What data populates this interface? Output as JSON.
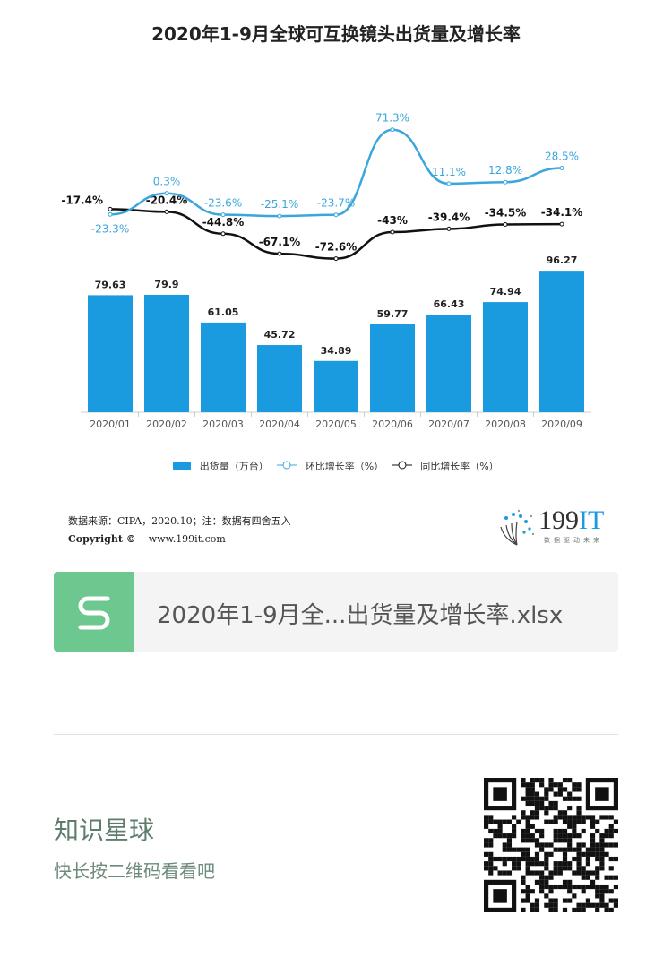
{
  "title": "2020年1-9月全球可互换镜头出货量及增长率",
  "chart_data": {
    "type": "bar+line",
    "title": "2020年1-9月全球可互换镜头出货量及增长率",
    "categories": [
      "2020/01",
      "2020/02",
      "2020/03",
      "2020/04",
      "2020/05",
      "2020/06",
      "2020/07",
      "2020/08",
      "2020/09"
    ],
    "series": [
      {
        "name": "出货量（万台）",
        "type": "bar",
        "color": "#1a9be0",
        "values": [
          79.63,
          79.9,
          61.05,
          45.72,
          34.89,
          59.77,
          66.43,
          74.94,
          96.27
        ],
        "labels": [
          "79.63",
          "79.9",
          "61.05",
          "45.72",
          "34.89",
          "59.77",
          "66.43",
          "74.94",
          "96.27"
        ]
      },
      {
        "name": "环比增长率（%）",
        "type": "line",
        "color": "#3aa6dc",
        "values": [
          -23.3,
          0.3,
          -23.6,
          -25.1,
          -23.7,
          71.3,
          11.1,
          12.8,
          28.5
        ],
        "labels": [
          "-23.3%",
          "0.3%",
          "-23.6%",
          "-25.1%",
          "-23.7%",
          "71.3%",
          "11.1%",
          "12.8%",
          "28.5%"
        ]
      },
      {
        "name": "同比增长率（%）",
        "type": "line",
        "color": "#111111",
        "values": [
          -17.4,
          -20.4,
          -44.8,
          -67.1,
          -72.6,
          -43,
          -39.4,
          -34.5,
          -34.1
        ],
        "labels": [
          "-17.4%",
          "-20.4%",
          "-44.8%",
          "-67.1%",
          "-72.6%",
          "-43%",
          "-39.4%",
          "-34.5%",
          "-34.1%"
        ]
      }
    ],
    "legend": "bottom",
    "grid": false
  },
  "legend": {
    "bar": "出货量（万台）",
    "mom": "环比增长率（%）",
    "yoy": "同比增长率（%）"
  },
  "source": {
    "line1": "数据来源：CIPA，2020.10；注：数据有四舍五入",
    "line2_bold": "Copyright ©",
    "line2_url": "www.199it.com"
  },
  "logo": {
    "num": "199",
    "it": "IT",
    "sub": "数据驱动未来"
  },
  "file": {
    "name": "2020年1-9月全...出货量及增长率.xlsx",
    "icon": "S"
  },
  "footer": {
    "planet": "知识星球",
    "hint": "快长按二维码看看吧"
  }
}
